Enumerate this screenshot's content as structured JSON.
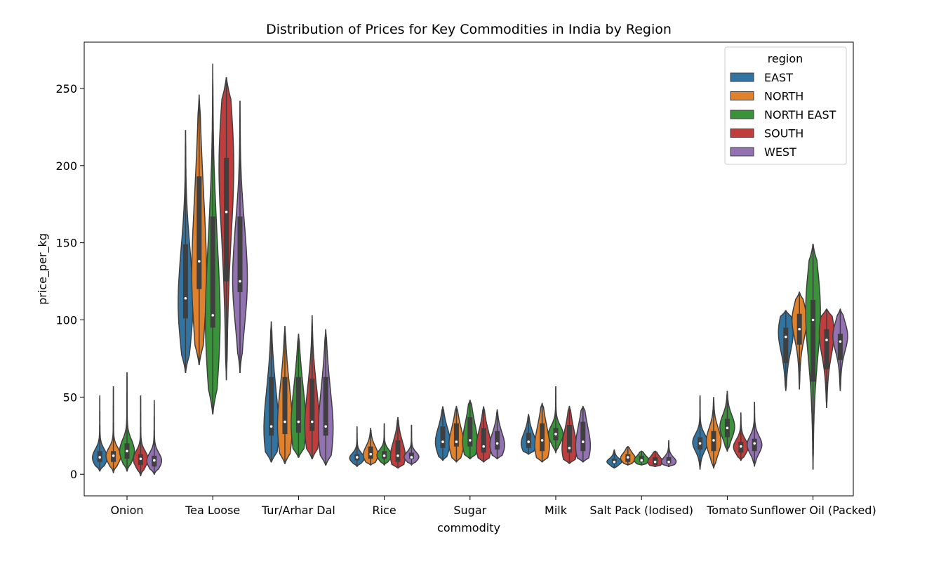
{
  "chart_data": {
    "type": "violin",
    "title": "Distribution of Prices for Key Commodities in India by Region",
    "xlabel": "commodity",
    "ylabel": "price_per_kg",
    "ylim": [
      -14,
      280
    ],
    "yticks": [
      0,
      50,
      100,
      150,
      200,
      250
    ],
    "grid": false,
    "legend": {
      "title": "region",
      "placement": "top-right"
    },
    "categories": [
      "Onion",
      "Tea Loose",
      "Tur/Arhar Dal",
      "Rice",
      "Sugar",
      "Milk",
      "Salt Pack (Iodised)",
      "Tomato",
      "Sunflower Oil (Packed)"
    ],
    "series": [
      {
        "name": "EAST",
        "color": "#3274a1",
        "stats": [
          {
            "min": 2,
            "q1": 8,
            "median": 11,
            "q3": 15,
            "max": 51,
            "mode": 10
          },
          {
            "min": 66,
            "q1": 101,
            "median": 114,
            "q3": 149,
            "max": 223,
            "mode": 108
          },
          {
            "min": 8,
            "q1": 25,
            "median": 31,
            "q3": 63,
            "max": 99,
            "mode": 28
          },
          {
            "min": 5,
            "q1": 9,
            "median": 11,
            "q3": 13,
            "max": 31,
            "mode": 10
          },
          {
            "min": 9,
            "q1": 17,
            "median": 21,
            "q3": 31,
            "max": 44,
            "mode": 20
          },
          {
            "min": 13,
            "q1": 17,
            "median": 21,
            "q3": 27,
            "max": 39,
            "mode": 19
          },
          {
            "min": 4,
            "q1": 7,
            "median": 8,
            "q3": 10,
            "max": 16,
            "mode": 8
          },
          {
            "min": 3,
            "q1": 16,
            "median": 20,
            "q3": 24,
            "max": 51,
            "mode": 20
          },
          {
            "min": 54,
            "q1": 72,
            "median": 89,
            "q3": 95,
            "max": 106,
            "mode": 92
          }
        ]
      },
      {
        "name": "NORTH",
        "color": "#e1812c",
        "stats": [
          {
            "min": 1,
            "q1": 8,
            "median": 12,
            "q3": 15,
            "max": 57,
            "mode": 11
          },
          {
            "min": 71,
            "q1": 120,
            "median": 138,
            "q3": 193,
            "max": 246,
            "mode": 125
          },
          {
            "min": 7,
            "q1": 26,
            "median": 34,
            "q3": 63,
            "max": 96,
            "mode": 30
          },
          {
            "min": 6,
            "q1": 10,
            "median": 13,
            "q3": 18,
            "max": 30,
            "mode": 12
          },
          {
            "min": 8,
            "q1": 18,
            "median": 21,
            "q3": 33,
            "max": 44,
            "mode": 19
          },
          {
            "min": 8,
            "q1": 15,
            "median": 22,
            "q3": 33,
            "max": 46,
            "mode": 17
          },
          {
            "min": 6,
            "q1": 8,
            "median": 11,
            "q3": 13,
            "max": 18,
            "mode": 10
          },
          {
            "min": 4,
            "q1": 15,
            "median": 22,
            "q3": 28,
            "max": 50,
            "mode": 20
          },
          {
            "min": 55,
            "q1": 84,
            "median": 94,
            "q3": 104,
            "max": 118,
            "mode": 100
          }
        ]
      },
      {
        "name": "NORTH EAST",
        "color": "#3a923a",
        "stats": [
          {
            "min": 2,
            "q1": 10,
            "median": 15,
            "q3": 20,
            "max": 66,
            "mode": 14
          },
          {
            "min": 39,
            "q1": 95,
            "median": 103,
            "q3": 167,
            "max": 266,
            "mode": 98
          },
          {
            "min": 11,
            "q1": 27,
            "median": 34,
            "q3": 63,
            "max": 91,
            "mode": 31
          },
          {
            "min": 6,
            "q1": 10,
            "median": 12,
            "q3": 15,
            "max": 33,
            "mode": 12
          },
          {
            "min": 10,
            "q1": 18,
            "median": 22,
            "q3": 37,
            "max": 48,
            "mode": 20
          },
          {
            "min": 14,
            "q1": 22,
            "median": 26,
            "q3": 30,
            "max": 57,
            "mode": 25
          },
          {
            "min": 6,
            "q1": 8,
            "median": 9,
            "q3": 12,
            "max": 15,
            "mode": 9
          },
          {
            "min": 15,
            "q1": 24,
            "median": 30,
            "q3": 36,
            "max": 54,
            "mode": 30
          },
          {
            "min": 3,
            "q1": 60,
            "median": 100,
            "q3": 113,
            "max": 149,
            "mode": 104
          }
        ]
      },
      {
        "name": "SOUTH",
        "color": "#c03d3e",
        "stats": [
          {
            "min": -1,
            "q1": 6,
            "median": 10,
            "q3": 13,
            "max": 51,
            "mode": 9
          },
          {
            "min": 61,
            "q1": 125,
            "median": 170,
            "q3": 205,
            "max": 257,
            "mode": 205
          },
          {
            "min": 10,
            "q1": 28,
            "median": 34,
            "q3": 62,
            "max": 103,
            "mode": 30
          },
          {
            "min": 4,
            "q1": 8,
            "median": 12,
            "q3": 22,
            "max": 37,
            "mode": 11
          },
          {
            "min": 8,
            "q1": 14,
            "median": 18,
            "q3": 30,
            "max": 44,
            "mode": 17
          },
          {
            "min": 7,
            "q1": 14,
            "median": 17,
            "q3": 32,
            "max": 44,
            "mode": 16
          },
          {
            "min": 5,
            "q1": 6,
            "median": 8,
            "q3": 11,
            "max": 15,
            "mode": 8
          },
          {
            "min": 9,
            "q1": 14,
            "median": 18,
            "q3": 21,
            "max": 40,
            "mode": 17
          },
          {
            "min": 43,
            "q1": 68,
            "median": 87,
            "q3": 94,
            "max": 107,
            "mode": 92
          }
        ]
      },
      {
        "name": "WEST",
        "color": "#9372b2",
        "stats": [
          {
            "min": 0,
            "q1": 5,
            "median": 9,
            "q3": 12,
            "max": 48,
            "mode": 8
          },
          {
            "min": 66,
            "q1": 118,
            "median": 125,
            "q3": 167,
            "max": 242,
            "mode": 125
          },
          {
            "min": 6,
            "q1": 25,
            "median": 31,
            "q3": 63,
            "max": 94,
            "mode": 28
          },
          {
            "min": 6,
            "q1": 10,
            "median": 11,
            "q3": 14,
            "max": 32,
            "mode": 11
          },
          {
            "min": 10,
            "q1": 16,
            "median": 20,
            "q3": 28,
            "max": 42,
            "mode": 18
          },
          {
            "min": 8,
            "q1": 15,
            "median": 21,
            "q3": 34,
            "max": 44,
            "mode": 17
          },
          {
            "min": 5,
            "q1": 7,
            "median": 8,
            "q3": 11,
            "max": 22,
            "mode": 8
          },
          {
            "min": 5,
            "q1": 15,
            "median": 20,
            "q3": 23,
            "max": 47,
            "mode": 18
          },
          {
            "min": 54,
            "q1": 74,
            "median": 86,
            "q3": 91,
            "max": 107,
            "mode": 90
          }
        ]
      }
    ]
  }
}
